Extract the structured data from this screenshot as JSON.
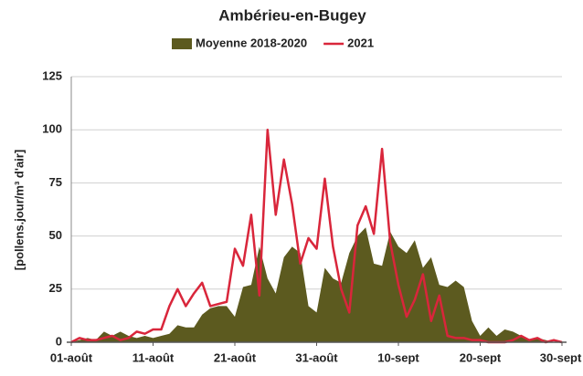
{
  "chart_data": {
    "type": "area",
    "title": "Ambérieu-en-Bugey",
    "y_label": "[pollens.jour/m³ d'air]",
    "categories": [
      "01-août",
      null,
      null,
      null,
      null,
      null,
      null,
      null,
      null,
      null,
      "11-août",
      null,
      null,
      null,
      null,
      null,
      null,
      null,
      null,
      null,
      "21-août",
      null,
      null,
      null,
      null,
      null,
      null,
      null,
      null,
      null,
      "31-août",
      null,
      null,
      null,
      null,
      null,
      null,
      null,
      null,
      null,
      "10-sept",
      null,
      null,
      null,
      null,
      null,
      null,
      null,
      null,
      null,
      "20-sept",
      null,
      null,
      null,
      null,
      null,
      null,
      null,
      null,
      null,
      "30-sept"
    ],
    "series": [
      {
        "name": "Moyenne 2018-2020",
        "kind": "area",
        "color": "#5c5a1f",
        "values": [
          0,
          1,
          2,
          1,
          5,
          3,
          5,
          3,
          2,
          3,
          2,
          3,
          4,
          8,
          7,
          7,
          13,
          16,
          17,
          17,
          12,
          26,
          27,
          45,
          30,
          23,
          40,
          45,
          42,
          17,
          14,
          35,
          30,
          28,
          42,
          50,
          54,
          37,
          36,
          52,
          45,
          42,
          48,
          35,
          40,
          27,
          26,
          29,
          26,
          10,
          3,
          7,
          3,
          6,
          5,
          3,
          1,
          2,
          1,
          0,
          0
        ]
      },
      {
        "name": "2021",
        "kind": "line",
        "color": "#d9263b",
        "values": [
          0,
          2,
          1,
          1,
          2,
          3,
          1,
          2,
          5,
          4,
          6,
          6,
          17,
          25,
          17,
          23,
          28,
          17,
          18,
          19,
          44,
          36,
          60,
          22,
          100,
          60,
          86,
          65,
          37,
          49,
          44,
          77,
          45,
          25,
          14,
          55,
          64,
          51,
          91,
          47,
          27,
          12,
          20,
          32,
          10,
          22,
          3,
          2,
          2,
          1,
          1,
          0,
          0,
          0,
          1,
          3,
          1,
          2,
          0,
          1,
          0
        ]
      }
    ],
    "ylim": [
      0,
      125
    ],
    "yticks": [
      0,
      25,
      50,
      75,
      100,
      125
    ],
    "grid": true
  }
}
